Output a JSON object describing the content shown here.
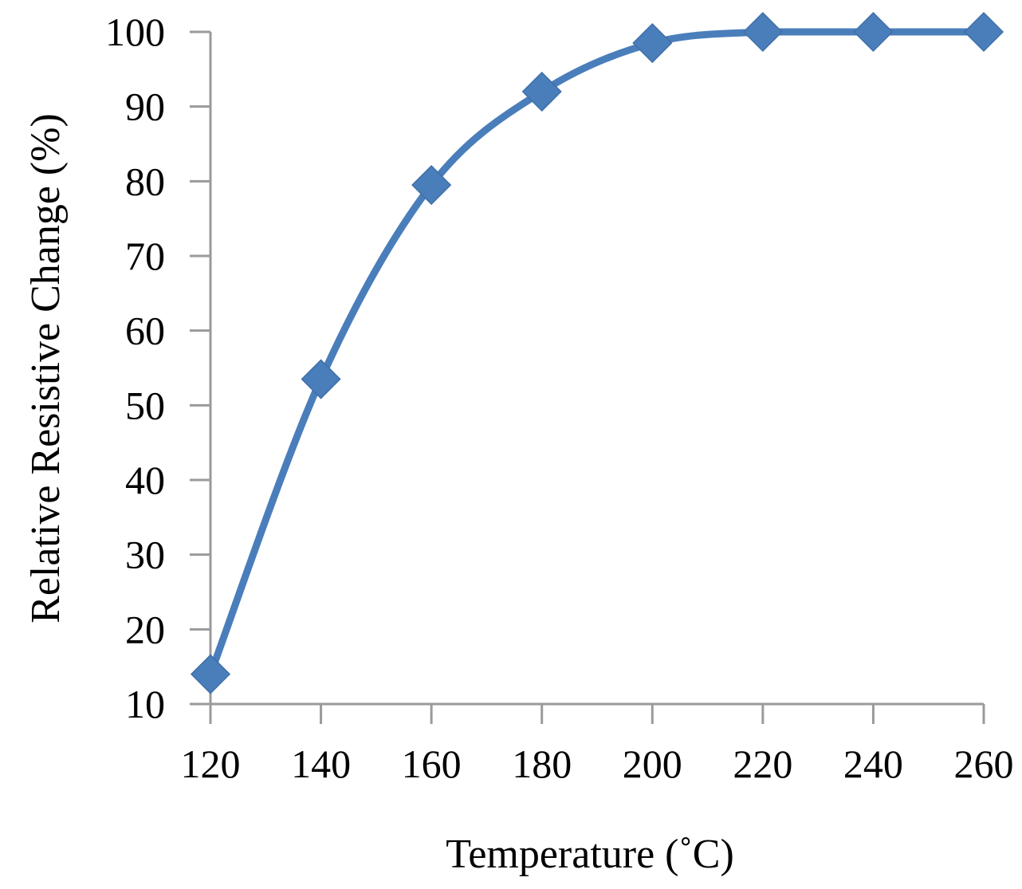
{
  "chart_data": {
    "type": "line",
    "title": "",
    "xlabel": "Temperature (˚C)",
    "ylabel": "Relative Resistive Change (%)",
    "xlim": [
      120,
      260
    ],
    "ylim": [
      10,
      100
    ],
    "x_ticks": [
      120,
      140,
      160,
      180,
      200,
      220,
      240,
      260
    ],
    "y_ticks": [
      10,
      20,
      30,
      40,
      50,
      60,
      70,
      80,
      90,
      100
    ],
    "grid": false,
    "legend": "none",
    "smooth": true,
    "marker": "diamond",
    "series": [
      {
        "color": "#4a7ebb",
        "x": [
          120,
          140,
          160,
          180,
          200,
          220,
          240,
          260
        ],
        "y": [
          14,
          53.5,
          79.5,
          92,
          98.5,
          100,
          100,
          100
        ]
      }
    ]
  }
}
